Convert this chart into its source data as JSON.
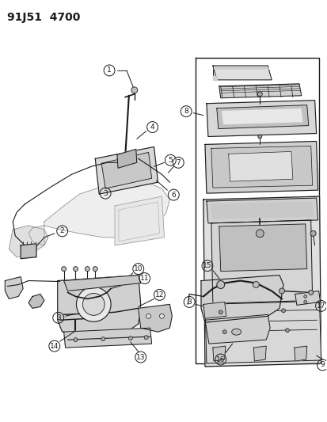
{
  "title": "91J51  4700",
  "bg_color": "#ffffff",
  "line_color": "#1a1a1a",
  "title_fontsize": 10,
  "fig_width": 4.14,
  "fig_height": 5.33,
  "dpi": 100
}
